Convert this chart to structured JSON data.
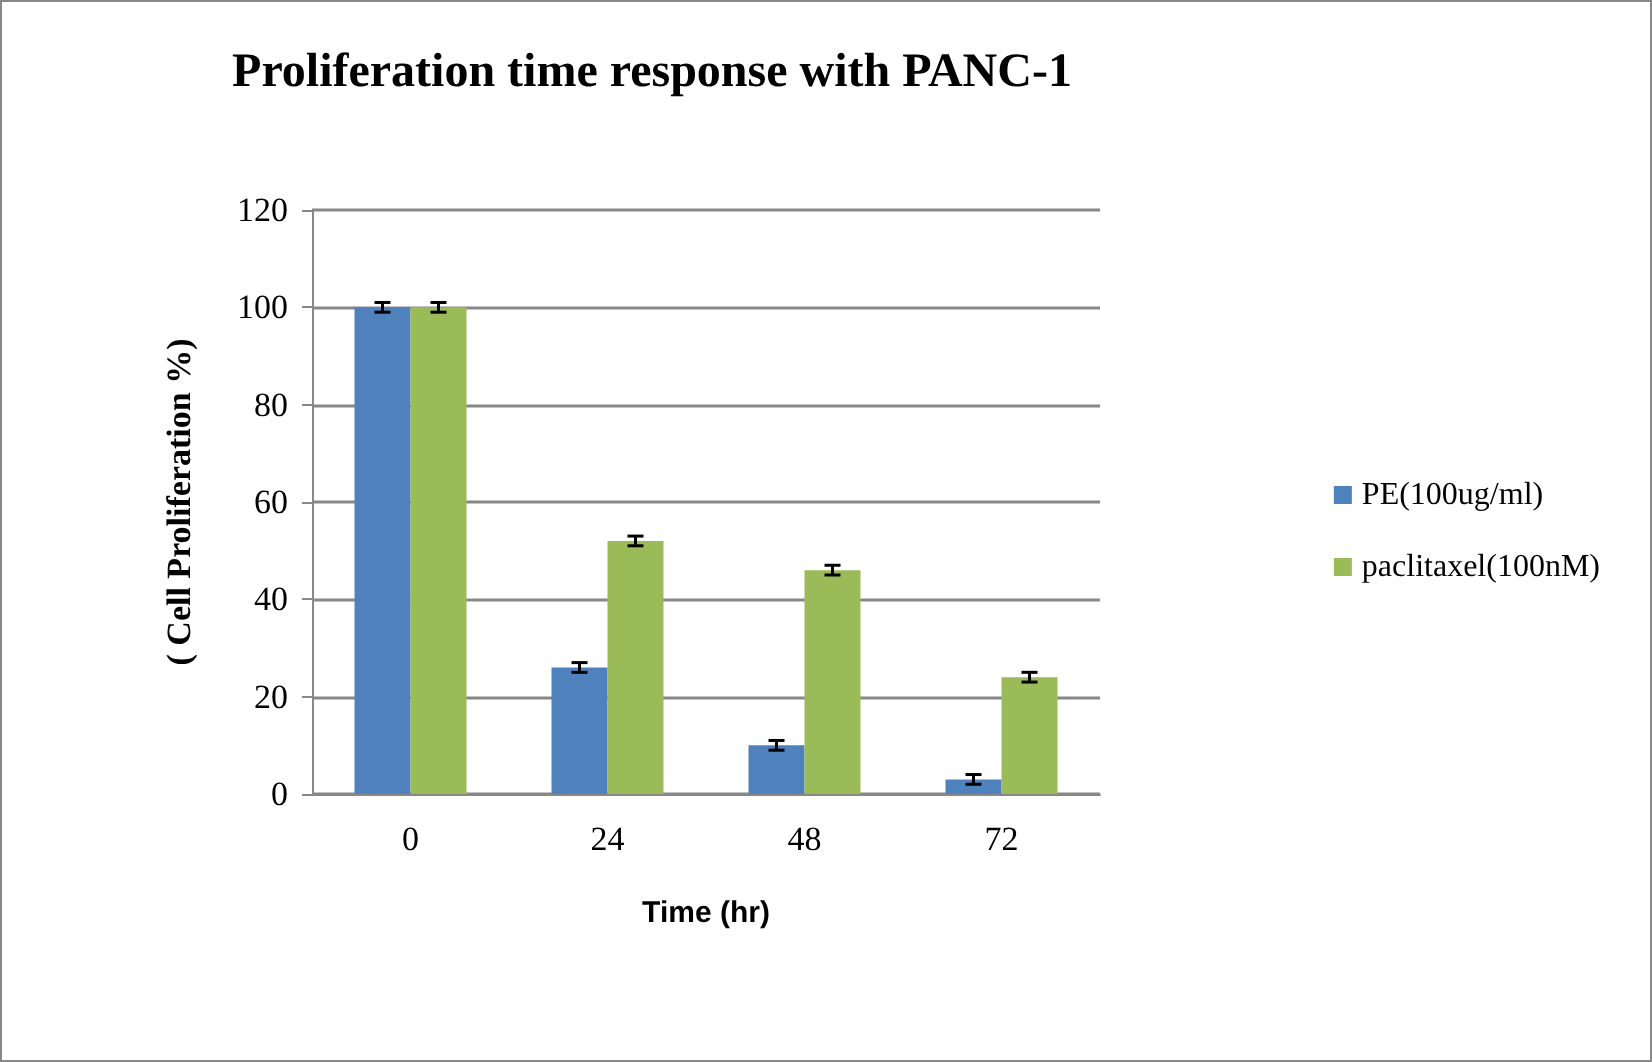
{
  "chart_data": {
    "type": "bar",
    "title": "Proliferation time response with PANC-1",
    "xlabel": "Time (hr)",
    "ylabel": "( Cell Proliferation %)",
    "categories": [
      "0",
      "24",
      "48",
      "72"
    ],
    "series": [
      {
        "name": "PE(100ug/ml)",
        "color": "#4f81bd",
        "values": [
          100,
          26,
          10,
          3
        ],
        "errors": [
          1,
          1,
          1,
          1
        ]
      },
      {
        "name": "paclitaxel(100nM)",
        "color": "#9bbb59",
        "values": [
          100,
          52,
          46,
          24
        ],
        "errors": [
          1,
          1,
          1,
          1
        ]
      }
    ],
    "ylim": [
      0,
      120
    ],
    "yticks": [
      0,
      20,
      40,
      60,
      80,
      100,
      120
    ],
    "grid": "y",
    "legend": "right"
  }
}
